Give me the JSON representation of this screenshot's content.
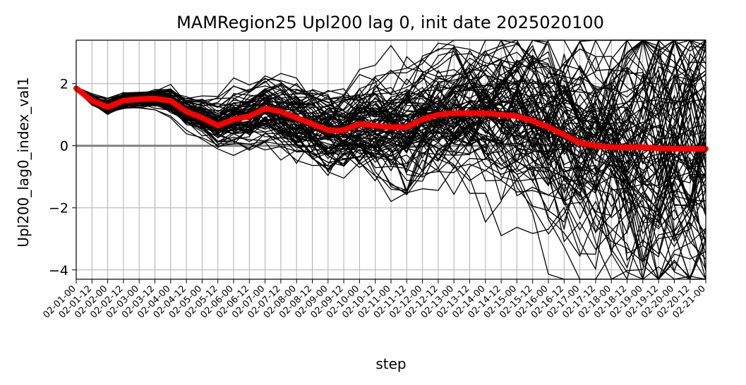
{
  "chart_data": {
    "type": "line",
    "title": "MAMRegion25 Upl200 lag 0, init date 2025020100",
    "xlabel": "step",
    "ylabel": "Upl200_lag0_index_val1",
    "ylim": [
      -4.3,
      3.4
    ],
    "yticks": [
      -4,
      -2,
      0,
      2
    ],
    "ytick_labels": [
      "−4",
      "−2",
      "0",
      "2"
    ],
    "grid": true,
    "reference_line_y": 0,
    "x": [
      "02-01-00",
      "02-01-12",
      "02-02-00",
      "02-02-12",
      "02-03-00",
      "02-03-12",
      "02-04-00",
      "02-04-12",
      "02-05-00",
      "02-05-12",
      "02-06-00",
      "02-06-12",
      "02-07-00",
      "02-07-12",
      "02-08-00",
      "02-08-12",
      "02-09-00",
      "02-09-12",
      "02-10-00",
      "02-10-12",
      "02-11-00",
      "02-11-12",
      "02-12-00",
      "02-12-12",
      "02-13-00",
      "02-13-12",
      "02-14-00",
      "02-14-12",
      "02-15-00",
      "02-15-12",
      "02-16-00",
      "02-16-12",
      "02-17-00",
      "02-17-12",
      "02-18-00",
      "02-18-12",
      "02-19-00",
      "02-19-12",
      "02-20-00",
      "02-20-12",
      "02-21-00"
    ],
    "series_colors": {
      "members": "#000000",
      "mean": "#ff0000",
      "zero": "#808080"
    },
    "ensemble_spread": [
      0.05,
      0.1,
      0.15,
      0.15,
      0.15,
      0.15,
      0.2,
      0.25,
      0.3,
      0.35,
      0.4,
      0.45,
      0.5,
      0.55,
      0.6,
      0.65,
      0.7,
      0.75,
      0.8,
      0.85,
      0.9,
      0.95,
      1.0,
      1.05,
      1.1,
      1.15,
      1.2,
      1.3,
      1.4,
      1.5,
      1.6,
      1.7,
      1.8,
      1.9,
      2.0,
      2.1,
      2.2,
      2.3,
      2.4,
      2.5,
      2.5
    ],
    "series": [
      {
        "role": "ensemble-mean",
        "values": [
          1.85,
          1.45,
          1.25,
          1.45,
          1.5,
          1.52,
          1.45,
          1.1,
          0.9,
          0.65,
          0.85,
          0.95,
          1.2,
          1.1,
          0.9,
          0.7,
          0.5,
          0.5,
          0.7,
          0.65,
          0.6,
          0.6,
          0.85,
          1.0,
          1.05,
          1.05,
          1.05,
          1.0,
          0.95,
          0.8,
          0.6,
          0.35,
          0.1,
          0.0,
          -0.05,
          -0.05,
          -0.05,
          -0.08,
          -0.1,
          -0.1,
          -0.1
        ]
      }
    ]
  }
}
